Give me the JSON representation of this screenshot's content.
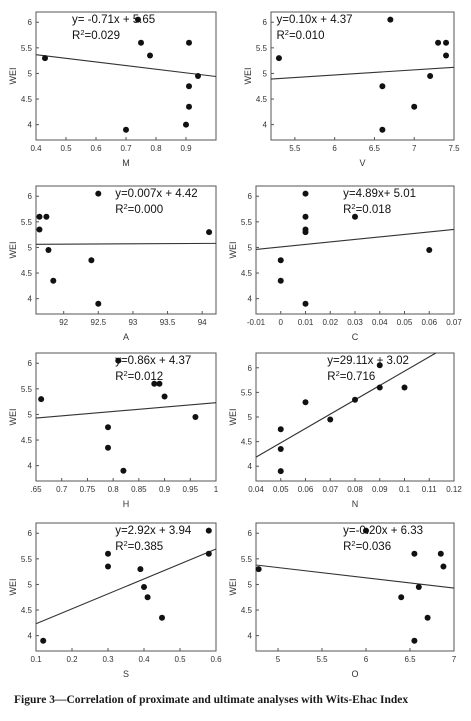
{
  "caption": "Figure 3—Correlation of proximate and ultimate analyses with Wits-Ehac Index",
  "chart_data": [
    {
      "type": "scatter",
      "xlabel": "M",
      "ylabel": "WEI",
      "equation": "y= -0.71x + 5.65",
      "r2_base": "R",
      "r2_sup": "2",
      "r2_value": "=0.029",
      "xlim": [
        0.4,
        1.0
      ],
      "ylim": [
        3.7,
        6.2
      ],
      "xticks": [
        "0.4",
        "0.5",
        "0.6",
        "0.7",
        "0.8",
        "0.9"
      ],
      "yticks": [
        "4",
        "4.5",
        "5",
        "5.5",
        "6"
      ],
      "line": {
        "slope": -0.71,
        "intercept": 5.65
      },
      "x": [
        0.43,
        0.7,
        0.74,
        0.75,
        0.78,
        0.91,
        0.91,
        0.91,
        0.94,
        0.9
      ],
      "y": [
        5.3,
        3.9,
        6.05,
        5.6,
        5.35,
        5.6,
        4.75,
        4.35,
        4.95,
        4.0
      ]
    },
    {
      "type": "scatter",
      "xlabel": "V",
      "ylabel": "WEI",
      "equation": "y=0.10x + 4.37",
      "r2_base": "R",
      "r2_sup": "2",
      "r2_value": "=0.010",
      "xlim": [
        5.2,
        7.5
      ],
      "ylim": [
        3.7,
        6.2
      ],
      "xticks": [
        "5.5",
        "6",
        "6.5",
        "7",
        "7.5"
      ],
      "yticks": [
        "4",
        "4.5",
        "5",
        "5.5",
        "6"
      ],
      "line": {
        "slope": 0.1,
        "intercept": 4.37
      },
      "x": [
        5.3,
        6.6,
        6.6,
        6.7,
        7.0,
        7.2,
        7.3,
        7.4,
        7.4
      ],
      "y": [
        5.3,
        4.75,
        3.9,
        6.05,
        4.35,
        4.95,
        5.6,
        5.6,
        5.35
      ]
    },
    {
      "type": "scatter",
      "xlabel": "A",
      "ylabel": "WEI",
      "equation": "y=0.007x + 4.42",
      "r2_base": "R",
      "r2_sup": "2",
      "r2_value": "=0.000",
      "xlim": [
        91.6,
        94.2
      ],
      "ylim": [
        3.7,
        6.2
      ],
      "xticks": [
        "92",
        "92.5",
        "93",
        "93.5",
        "94"
      ],
      "yticks": [
        "4",
        "4.5",
        "5",
        "5.5",
        "6"
      ],
      "line": {
        "slope": 0.007,
        "intercept": 4.42
      },
      "x": [
        91.65,
        91.65,
        91.75,
        91.78,
        91.85,
        92.4,
        92.5,
        92.5,
        94.1
      ],
      "y": [
        5.6,
        5.35,
        5.6,
        4.95,
        4.35,
        4.75,
        6.05,
        3.9,
        5.3
      ]
    },
    {
      "type": "scatter",
      "xlabel": "C",
      "ylabel": "WEI",
      "equation": "y=4.89x+ 5.01",
      "r2_base": "R",
      "r2_sup": "2",
      "r2_value": "=0.018",
      "xlim": [
        -0.01,
        0.07
      ],
      "ylim": [
        3.7,
        6.2
      ],
      "xticks": [
        "-0.01",
        "0",
        "0.01",
        "0.02",
        "0.03",
        "0.04",
        "0.05",
        "0.06",
        "0.07"
      ],
      "yticks": [
        "4",
        "4.5",
        "5",
        "5.5",
        "6"
      ],
      "line": {
        "slope": 4.89,
        "intercept": 5.01
      },
      "x": [
        0.0,
        0.0,
        0.01,
        0.01,
        0.01,
        0.01,
        0.01,
        0.03,
        0.06
      ],
      "y": [
        4.75,
        4.35,
        6.05,
        5.6,
        5.35,
        5.3,
        3.9,
        5.6,
        4.95
      ]
    },
    {
      "type": "scatter",
      "xlabel": "H",
      "ylabel": "WEI",
      "equation": "y=0.86x + 4.37",
      "r2_base": "R",
      "r2_sup": "2",
      "r2_value": "=0.012",
      "xlim": [
        0.65,
        1.0
      ],
      "ylim": [
        3.7,
        6.2
      ],
      "xticks": [
        ".65",
        "0.7",
        "0.75",
        "0.8",
        "0.85",
        "0.9",
        "0.95",
        "1"
      ],
      "yticks": [
        "4",
        "4.5",
        "5",
        "5.5",
        "6"
      ],
      "line": {
        "slope": 0.86,
        "intercept": 4.37
      },
      "x": [
        0.66,
        0.79,
        0.79,
        0.81,
        0.82,
        0.88,
        0.89,
        0.9,
        0.96
      ],
      "y": [
        5.3,
        4.75,
        4.35,
        6.05,
        3.9,
        5.6,
        5.6,
        5.35,
        4.95
      ]
    },
    {
      "type": "scatter",
      "xlabel": "N",
      "ylabel": "WEI",
      "equation": "y=29.11x + 3.02",
      "r2_base": "R",
      "r2_sup": "2",
      "r2_value": "=0.716",
      "xlim": [
        0.04,
        0.12
      ],
      "ylim": [
        3.7,
        6.3
      ],
      "xticks": [
        "0.04",
        "0.05",
        "0.06",
        "0.07",
        "0.08",
        "0.09",
        "0.1",
        "0.11",
        "0.12"
      ],
      "yticks": [
        "4",
        "4.5",
        "5",
        "5.5",
        "6"
      ],
      "line": {
        "slope": 29.11,
        "intercept": 3.02
      },
      "x": [
        0.05,
        0.05,
        0.05,
        0.06,
        0.07,
        0.08,
        0.09,
        0.09,
        0.1
      ],
      "y": [
        4.75,
        4.35,
        3.9,
        5.3,
        4.95,
        5.35,
        6.05,
        5.6,
        5.6
      ]
    },
    {
      "type": "scatter",
      "xlabel": "S",
      "ylabel": "WEI",
      "equation": "y=2.92x + 3.94",
      "r2_base": "R",
      "r2_sup": "2",
      "r2_value": "=0.385",
      "xlim": [
        0.1,
        0.6
      ],
      "ylim": [
        3.7,
        6.2
      ],
      "xticks": [
        "0.1",
        "0.2",
        "0.3",
        "0.4",
        "0.5",
        "0.6"
      ],
      "yticks": [
        "4",
        "4.5",
        "5",
        "5.5",
        "6"
      ],
      "line": {
        "slope": 2.92,
        "intercept": 3.94
      },
      "x": [
        0.12,
        0.3,
        0.3,
        0.39,
        0.4,
        0.41,
        0.45,
        0.58,
        0.58
      ],
      "y": [
        3.9,
        5.6,
        5.35,
        5.3,
        4.95,
        4.75,
        4.35,
        6.05,
        5.6
      ]
    },
    {
      "type": "scatter",
      "xlabel": "O",
      "ylabel": "WEI",
      "equation": "y=-0.20x + 6.33",
      "r2_base": "R",
      "r2_sup": "2",
      "r2_value": "=0.036",
      "xlim": [
        4.75,
        7.0
      ],
      "ylim": [
        3.7,
        6.2
      ],
      "xticks": [
        "5",
        "5.5",
        "6",
        "6.5",
        "7"
      ],
      "yticks": [
        "4",
        "4.5",
        "5",
        "5.5",
        "6"
      ],
      "line": {
        "slope": -0.2,
        "intercept": 6.33
      },
      "x": [
        4.78,
        6.0,
        6.55,
        6.6,
        6.4,
        6.7,
        6.55,
        6.85,
        6.88
      ],
      "y": [
        5.3,
        6.05,
        5.6,
        4.95,
        4.75,
        4.35,
        3.9,
        5.6,
        5.35
      ]
    }
  ]
}
